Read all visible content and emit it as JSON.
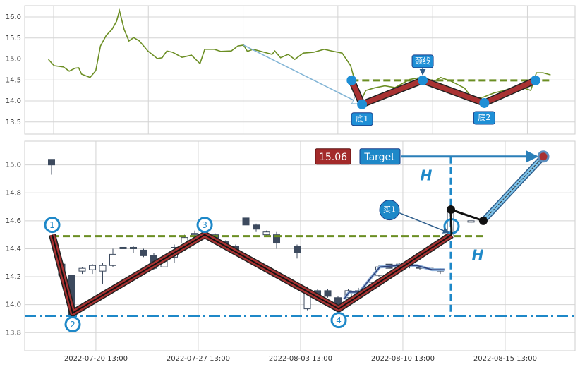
{
  "chart_data": [
    {
      "type": "line",
      "marker_style": "dot",
      "grid": true,
      "xtick_labels": false,
      "xlim": [
        0,
        58.08
      ],
      "xticks": [
        3.05,
        13.05,
        23.05,
        33.05,
        43.05,
        53.05
      ],
      "ylim": [
        13.21,
        16.27
      ],
      "yticks": [
        13.5,
        {
          "value": 14,
          "label": "14.0"
        },
        14.5,
        {
          "value": 15,
          "label": "15.0"
        },
        15.5,
        {
          "value": 16,
          "label": "16.0"
        }
      ],
      "series": [
        {
          "color": "#6b8e23",
          "x": [
            2.5,
            3.1,
            4.1,
            4.7,
            5.3,
            5.7,
            6.0,
            6.9,
            7.5,
            8.0,
            8.6,
            9.2,
            9.7,
            10.0,
            10.5,
            11.0,
            11.5,
            12.1,
            13.0,
            14.0,
            14.5,
            15.0,
            15.6,
            16.6,
            17.6,
            18.5,
            19.0,
            20.0,
            20.7,
            21.8,
            22.5,
            23.1,
            23.5,
            24.1,
            24.8,
            26.1,
            26.4,
            27.0,
            27.8,
            28.5,
            29.4,
            30.5,
            31.6,
            32.4,
            33.5,
            34.4,
            34.9,
            35.4,
            36.0,
            36.9,
            38.0,
            39.1,
            40.6,
            41.8,
            43.0,
            43.9,
            45.0,
            46.4,
            47.3,
            48.4,
            49.5,
            50.6,
            52.1,
            53.4,
            54.0,
            54.7,
            55.5
          ],
          "values": [
            14.99,
            14.84,
            14.81,
            14.71,
            14.78,
            14.79,
            14.64,
            14.56,
            14.72,
            15.31,
            15.56,
            15.7,
            15.9,
            16.15,
            15.7,
            15.43,
            15.51,
            15.43,
            15.19,
            15.01,
            15.03,
            15.19,
            15.16,
            15.04,
            15.09,
            14.89,
            15.23,
            15.23,
            15.18,
            15.19,
            15.31,
            15.33,
            15.18,
            15.23,
            15.19,
            15.11,
            15.19,
            15.03,
            15.11,
            14.99,
            15.14,
            15.16,
            15.23,
            15.19,
            15.14,
            14.84,
            14.42,
            13.97,
            14.25,
            14.31,
            14.36,
            14.32,
            14.51,
            14.56,
            14.44,
            14.56,
            14.47,
            14.31,
            14.05,
            14.09,
            14.19,
            14.25,
            14.36,
            14.25,
            14.67,
            14.67,
            14.62
          ]
        }
      ],
      "pattern": {
        "color": "#a83232",
        "marker_color": "#1e8fd6",
        "x": [
          34.5,
          35.6,
          42.0,
          48.5,
          53.9
        ],
        "values": [
          14.49,
          13.92,
          14.49,
          13.95,
          14.49
        ],
        "labels": [
          null,
          "底1",
          "颈线",
          "底2",
          null
        ]
      },
      "neckline": {
        "value": 14.49,
        "x": [
          34.5,
          55.5
        ],
        "color": "#6b8e23"
      },
      "arrow": {
        "x": [
          23.1,
          35.4
        ],
        "y": [
          15.33,
          13.94
        ],
        "color": "#7fb3d5"
      }
    },
    {
      "type": "candlestick",
      "marker_style": "ring",
      "grid": true,
      "up_color": "#ffffff",
      "down_color": "#3d4a5e",
      "xlim": [
        -2.62,
        51.17
      ],
      "xticks": [
        {
          "value": 4.34,
          "label": "2022-07-20 13:00"
        },
        {
          "value": 14.34,
          "label": "2022-07-27 13:00"
        },
        {
          "value": 24.34,
          "label": "2022-08-03 13:00"
        },
        {
          "value": 34.34,
          "label": "2022-08-10 13:00"
        },
        {
          "value": 44.34,
          "label": "2022-08-15 13:00"
        }
      ],
      "ylim": [
        13.67,
        15.17
      ],
      "yticks": [
        13.8,
        {
          "value": 14,
          "label": "14.0"
        },
        14.2,
        14.4,
        14.6,
        14.8,
        {
          "value": 15,
          "label": "15.0"
        }
      ],
      "x": [
        0,
        1,
        2,
        3,
        4,
        5,
        6,
        7,
        8,
        9,
        10,
        11,
        12,
        13,
        14,
        15,
        16,
        17,
        18,
        19,
        20,
        21,
        22,
        24,
        25,
        26,
        27,
        28,
        29,
        30,
        31,
        32,
        33,
        34,
        35,
        36,
        37,
        38,
        39,
        41
      ],
      "open": [
        15.04,
        14.29,
        14.21,
        14.24,
        14.25,
        14.24,
        14.28,
        14.41,
        14.4,
        14.39,
        14.35,
        14.27,
        14.34,
        14.44,
        14.5,
        14.51,
        14.5,
        14.45,
        14.42,
        14.62,
        14.57,
        14.5,
        14.5,
        14.42,
        13.97,
        14.1,
        14.1,
        14.05,
        14.05,
        14.06,
        14.11,
        14.21,
        14.29,
        14.28,
        14.28,
        14.27,
        14.26,
        14.25,
        14.49,
        14.59
      ],
      "high": [
        15.04,
        14.3,
        14.21,
        14.27,
        14.29,
        14.3,
        14.4,
        14.42,
        14.42,
        14.4,
        14.37,
        14.37,
        14.43,
        14.5,
        14.53,
        14.52,
        14.51,
        14.46,
        14.43,
        14.63,
        14.58,
        14.53,
        14.52,
        14.43,
        14.13,
        14.11,
        14.11,
        14.06,
        14.11,
        14.12,
        14.17,
        14.28,
        14.3,
        14.3,
        14.29,
        14.28,
        14.27,
        14.26,
        14.7,
        14.62
      ],
      "low": [
        14.93,
        14.2,
        13.92,
        14.22,
        14.22,
        14.15,
        14.27,
        14.39,
        14.37,
        14.34,
        14.25,
        14.26,
        14.3,
        14.42,
        14.49,
        14.46,
        14.45,
        14.4,
        14.37,
        14.56,
        14.52,
        14.49,
        14.4,
        14.33,
        13.96,
        14.05,
        14.05,
        13.98,
        14.03,
        14.04,
        14.09,
        14.2,
        14.25,
        14.26,
        14.26,
        14.25,
        14.24,
        14.22,
        14.48,
        14.58
      ],
      "close": [
        15.0,
        14.21,
        13.93,
        14.26,
        14.28,
        14.28,
        14.36,
        14.4,
        14.41,
        14.35,
        14.26,
        14.34,
        14.41,
        14.48,
        14.51,
        14.47,
        14.46,
        14.41,
        14.38,
        14.57,
        14.54,
        14.52,
        14.44,
        14.37,
        14.1,
        14.06,
        14.06,
        14.0,
        14.1,
        14.1,
        14.16,
        14.27,
        14.26,
        14.29,
        14.27,
        14.26,
        14.25,
        14.24,
        14.68,
        14.6
      ],
      "ma": {
        "color": "#2c3e78",
        "x": [
          28.6,
          29.1,
          30.1,
          31.2,
          32.1,
          33.9,
          35.7,
          37.2,
          38.4
        ],
        "values": [
          14.04,
          14.09,
          14.09,
          14.19,
          14.27,
          14.28,
          14.28,
          14.25,
          14.25
        ]
      },
      "pattern": {
        "color": "#a83232",
        "marker_color": "#1e88c8",
        "x": [
          0.07,
          2.07,
          14.97,
          28.07,
          39.1
        ],
        "values": [
          14.5,
          13.94,
          14.5,
          13.97,
          14.5
        ],
        "labels": [
          "1",
          "2",
          "3",
          "4",
          null
        ]
      },
      "neckline": {
        "value": 14.49,
        "x": [
          0.07,
          42.2
        ],
        "color": "#6b8e23"
      },
      "support": {
        "value": 13.92,
        "color": "#1e88c8"
      },
      "projection": {
        "x": [
          39.1,
          39.03,
          42.2,
          48.07
        ],
        "values": [
          14.5,
          14.68,
          14.6,
          15.06
        ]
      },
      "target": {
        "value": 15.06,
        "x": 48.07,
        "label": "Target"
      },
      "height_labels": [
        "H",
        "H"
      ],
      "buy_label": "买1"
    }
  ]
}
